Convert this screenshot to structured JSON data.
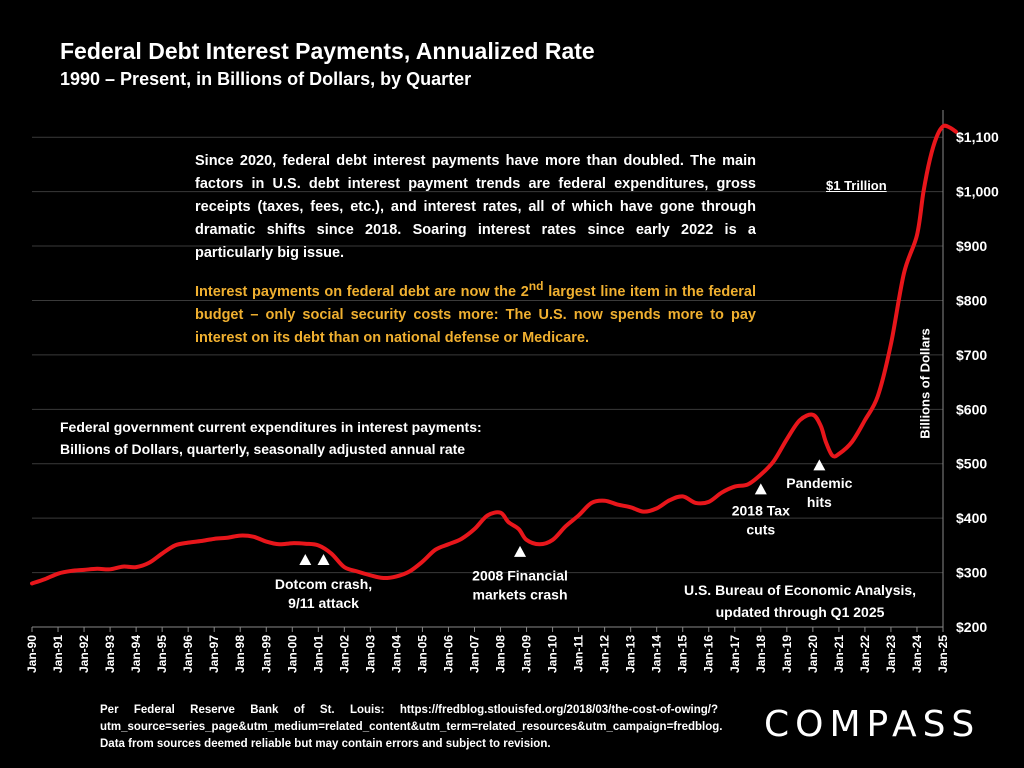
{
  "title": "Federal Debt Interest Payments, Annualized Rate",
  "subtitle": "1990 – Present, in Billions of Dollars, by Quarter",
  "textbox": {
    "paragraph1": "Since 2020, federal debt interest payments have more than doubled. The main factors in U.S. debt interest payment trends are federal expenditures, gross receipts (taxes, fees, etc.), and interest rates, all of which have gone through dramatic shifts since 2018. Soaring interest rates since early 2022 is a particularly big issue.",
    "paragraph2_before": "Interest payments on federal debt are now the 2",
    "paragraph2_sup": "nd",
    "paragraph2_after": " largest line item in the federal budget – only social security costs more: The U.S. now spends more to pay interest on its debt than on national defense or Medicare."
  },
  "series_label": {
    "line1": "Federal government current expenditures in interest payments:",
    "line2": "Billions of Dollars, quarterly, seasonally adjusted annual rate"
  },
  "trillion_label": "$1 Trillion",
  "source_note": {
    "line1": "U.S. Bureau of Economic Analysis,",
    "line2": "updated through Q1 2025"
  },
  "footer": "Per Federal Reserve Bank of St. Louis: https://fredblog.stlouisfed.org/2018/03/the-cost-of-owing/?utm_source=series_page&utm_medium=related_content&utm_term=related_resources&utm_campaign=fredblog. Data from sources deemed reliable but may contain errors and subject to revision.",
  "logo": "COMPASS",
  "colors": {
    "line": "#e8161b",
    "background": "#000000",
    "highlight": "#f0b030",
    "grid": "#3a3a3a"
  },
  "chart_data": {
    "type": "line",
    "ylabel": "Billions of Dollars",
    "ylim": [
      200,
      1150
    ],
    "y_ticks": [
      200,
      300,
      400,
      500,
      600,
      700,
      800,
      900,
      1000,
      1100
    ],
    "y_tick_labels": [
      "$200",
      "$300",
      "$400",
      "$500",
      "$600",
      "$700",
      "$800",
      "$900",
      "$1,000",
      "$1,100"
    ],
    "x_ticks": [
      1990,
      1991,
      1992,
      1993,
      1994,
      1995,
      1996,
      1997,
      1998,
      1999,
      2000,
      2001,
      2002,
      2003,
      2004,
      2005,
      2006,
      2007,
      2008,
      2009,
      2010,
      2011,
      2012,
      2013,
      2014,
      2015,
      2016,
      2017,
      2018,
      2019,
      2020,
      2021,
      2022,
      2023,
      2024,
      2025
    ],
    "x_tick_labels": [
      "Jan-90",
      "Jan-91",
      "Jan-92",
      "Jan-93",
      "Jan-94",
      "Jan-95",
      "Jan-96",
      "Jan-97",
      "Jan-98",
      "Jan-99",
      "Jan-00",
      "Jan-01",
      "Jan-02",
      "Jan-03",
      "Jan-04",
      "Jan-05",
      "Jan-06",
      "Jan-07",
      "Jan-08",
      "Jan-09",
      "Jan-10",
      "Jan-11",
      "Jan-12",
      "Jan-13",
      "Jan-14",
      "Jan-15",
      "Jan-16",
      "Jan-17",
      "Jan-18",
      "Jan-19",
      "Jan-20",
      "Jan-21",
      "Jan-22",
      "Jan-23",
      "Jan-24",
      "Jan-25"
    ],
    "grid": true,
    "series": [
      {
        "points": [
          [
            1990.0,
            280
          ],
          [
            1990.5,
            288
          ],
          [
            1991.0,
            298
          ],
          [
            1991.5,
            303
          ],
          [
            1992.0,
            305
          ],
          [
            1992.5,
            307
          ],
          [
            1993.0,
            306
          ],
          [
            1993.5,
            311
          ],
          [
            1994.0,
            310
          ],
          [
            1994.5,
            318
          ],
          [
            1995.0,
            335
          ],
          [
            1995.5,
            350
          ],
          [
            1996.0,
            355
          ],
          [
            1996.5,
            358
          ],
          [
            1997.0,
            362
          ],
          [
            1997.5,
            364
          ],
          [
            1998.0,
            368
          ],
          [
            1998.5,
            366
          ],
          [
            1999.0,
            357
          ],
          [
            1999.5,
            352
          ],
          [
            2000.0,
            354
          ],
          [
            2000.5,
            353
          ],
          [
            2001.0,
            350
          ],
          [
            2001.5,
            335
          ],
          [
            2002.0,
            310
          ],
          [
            2002.5,
            302
          ],
          [
            2003.0,
            295
          ],
          [
            2003.5,
            290
          ],
          [
            2004.0,
            293
          ],
          [
            2004.5,
            302
          ],
          [
            2005.0,
            320
          ],
          [
            2005.5,
            342
          ],
          [
            2006.0,
            352
          ],
          [
            2006.5,
            362
          ],
          [
            2007.0,
            380
          ],
          [
            2007.5,
            405
          ],
          [
            2008.0,
            410
          ],
          [
            2008.3,
            393
          ],
          [
            2008.7,
            380
          ],
          [
            2009.0,
            360
          ],
          [
            2009.5,
            352
          ],
          [
            2010.0,
            360
          ],
          [
            2010.5,
            385
          ],
          [
            2011.0,
            405
          ],
          [
            2011.5,
            428
          ],
          [
            2012.0,
            432
          ],
          [
            2012.5,
            425
          ],
          [
            2013.0,
            420
          ],
          [
            2013.5,
            412
          ],
          [
            2014.0,
            418
          ],
          [
            2014.5,
            433
          ],
          [
            2015.0,
            440
          ],
          [
            2015.5,
            428
          ],
          [
            2016.0,
            430
          ],
          [
            2016.5,
            447
          ],
          [
            2017.0,
            458
          ],
          [
            2017.5,
            462
          ],
          [
            2018.0,
            480
          ],
          [
            2018.5,
            505
          ],
          [
            2019.0,
            545
          ],
          [
            2019.5,
            580
          ],
          [
            2020.0,
            590
          ],
          [
            2020.3,
            570
          ],
          [
            2020.5,
            540
          ],
          [
            2020.75,
            515
          ],
          [
            2021.0,
            518
          ],
          [
            2021.5,
            540
          ],
          [
            2022.0,
            580
          ],
          [
            2022.5,
            625
          ],
          [
            2023.0,
            720
          ],
          [
            2023.5,
            850
          ],
          [
            2024.0,
            920
          ],
          [
            2024.25,
            1000
          ],
          [
            2024.5,
            1060
          ],
          [
            2024.75,
            1100
          ],
          [
            2025.0,
            1120
          ],
          [
            2025.25,
            1118
          ],
          [
            2025.5,
            1110
          ]
        ]
      }
    ],
    "annotations": [
      {
        "x": 2000.5,
        "y": 323,
        "label_lines": [
          "Dotcom crash,",
          "9/11 attack"
        ],
        "label_x": 2001.2,
        "label_y": 270
      },
      {
        "x": 2001.2,
        "y": 323
      },
      {
        "x": 2008.75,
        "y": 338,
        "label_lines": [
          "2008 Financial",
          "markets crash"
        ],
        "label_x": 2008.75,
        "label_y": 285
      },
      {
        "x": 2018.0,
        "y": 453,
        "label_lines": [
          "2018 Tax",
          "cuts"
        ],
        "label_x": 2018.0,
        "label_y": 405
      },
      {
        "x": 2020.25,
        "y": 497,
        "label_lines": [
          "Pandemic",
          "hits"
        ],
        "label_x": 2020.25,
        "label_y": 455
      }
    ]
  }
}
